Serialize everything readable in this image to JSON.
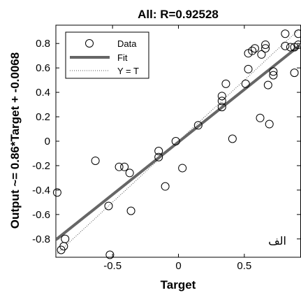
{
  "chart_data": {
    "type": "scatter",
    "title": "All: R=0.92528",
    "xlabel": "Target",
    "ylabel": "Output ~= 0.86*Target + -0.0068",
    "xlim": [
      -0.93,
      0.93
    ],
    "ylim": [
      -0.95,
      0.95
    ],
    "xticks": [
      -0.5,
      0,
      0.5
    ],
    "xtick_labels": [
      "-0.5",
      "0",
      "0.5"
    ],
    "yticks": [
      -0.8,
      -0.6,
      -0.4,
      -0.2,
      0,
      0.2,
      0.4,
      0.6,
      0.8
    ],
    "ytick_labels": [
      "-0.8",
      "-0.6",
      "-0.4",
      "-0.2",
      "0",
      "0.2",
      "0.4",
      "0.6",
      "0.8"
    ],
    "grid": false,
    "legend_position": "top-left",
    "corner_annotation": "الف",
    "series": [
      {
        "name": "Data",
        "kind": "markers",
        "marker": "open-circle",
        "x": [
          -0.92,
          -0.89,
          -0.87,
          -0.86,
          -0.63,
          -0.53,
          -0.52,
          -0.45,
          -0.41,
          -0.37,
          -0.36,
          -0.15,
          -0.15,
          -0.1,
          -0.02,
          0.03,
          0.15,
          0.33,
          0.33,
          0.33,
          0.36,
          0.41,
          0.51,
          0.53,
          0.53,
          0.56,
          0.58,
          0.62,
          0.63,
          0.66,
          0.66,
          0.68,
          0.69,
          0.72,
          0.72,
          0.81,
          0.81,
          0.85,
          0.88,
          0.88,
          0.91,
          0.91
        ],
        "y": [
          -0.42,
          -0.89,
          -0.86,
          -0.8,
          -0.16,
          -0.53,
          -0.93,
          -0.21,
          -0.21,
          -0.26,
          -0.57,
          -0.13,
          -0.08,
          -0.37,
          0.0,
          -0.22,
          0.13,
          0.28,
          0.33,
          0.37,
          0.47,
          0.02,
          0.47,
          0.59,
          0.72,
          0.74,
          0.76,
          0.19,
          0.71,
          0.76,
          0.79,
          0.46,
          0.14,
          0.54,
          0.57,
          0.78,
          0.88,
          0.77,
          0.77,
          0.56,
          0.79,
          0.88
        ]
      },
      {
        "name": "Fit",
        "kind": "line",
        "style": "solid-thick",
        "color": "#666666",
        "x": [
          -0.93,
          0.93
        ],
        "y": [
          -0.8066,
          0.793
        ]
      },
      {
        "name": "Y = T",
        "kind": "line",
        "style": "dotted",
        "color": "#555555",
        "x": [
          -0.93,
          0.93
        ],
        "y": [
          -0.93,
          0.93
        ]
      }
    ]
  }
}
